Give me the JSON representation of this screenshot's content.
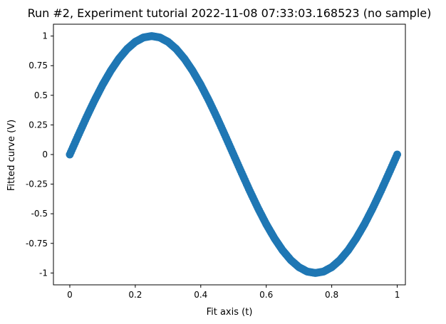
{
  "chart_data": {
    "type": "scatter",
    "title": "Run #2, Experiment tutorial 2022-11-08 07:33:03.168523 (no sample)",
    "xlabel": "Fit axis (t)",
    "ylabel": "Fitted curve (V)",
    "xlim": [
      -0.05,
      1.025
    ],
    "ylim": [
      -1.1,
      1.1
    ],
    "xticks": [
      0,
      0.2,
      0.4,
      0.6,
      0.8,
      1
    ],
    "xtick_labels": [
      "0",
      "0.2",
      "0.4",
      "0.6",
      "0.8",
      "1"
    ],
    "yticks": [
      1,
      0.75,
      0.5,
      0.25,
      0,
      -0.25,
      -0.5,
      -0.75,
      -1
    ],
    "ytick_labels": [
      "1",
      "0.75",
      "0.5",
      "0.25",
      "0",
      "-0.25",
      "-0.5",
      "-0.75",
      "-1"
    ],
    "grid": false,
    "series": [
      {
        "color": "#1f77b4",
        "x": [
          0,
          0.025,
          0.05,
          0.075,
          0.1,
          0.125,
          0.15,
          0.175,
          0.2,
          0.225,
          0.25,
          0.275,
          0.3,
          0.325,
          0.35,
          0.375,
          0.4,
          0.425,
          0.45,
          0.475,
          0.5,
          0.525,
          0.55,
          0.575,
          0.6,
          0.625,
          0.65,
          0.675,
          0.7,
          0.725,
          0.75,
          0.775,
          0.8,
          0.825,
          0.85,
          0.875,
          0.9,
          0.925,
          0.95,
          0.975,
          1
        ],
        "y": [
          0,
          0.156,
          0.309,
          0.454,
          0.588,
          0.707,
          0.809,
          0.891,
          0.951,
          0.988,
          1,
          0.988,
          0.951,
          0.891,
          0.809,
          0.707,
          0.588,
          0.454,
          0.309,
          0.156,
          0,
          -0.156,
          -0.309,
          -0.454,
          -0.588,
          -0.707,
          -0.809,
          -0.891,
          -0.951,
          -0.988,
          -1,
          -0.988,
          -0.951,
          -0.891,
          -0.809,
          -0.707,
          -0.588,
          -0.454,
          -0.309,
          -0.156,
          0
        ]
      }
    ]
  }
}
